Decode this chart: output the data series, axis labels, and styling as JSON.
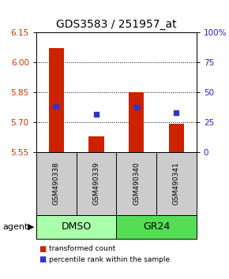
{
  "title": "GDS3583 / 251957_at",
  "samples": [
    "GSM490338",
    "GSM490339",
    "GSM490340",
    "GSM490341"
  ],
  "bar_tops": [
    6.07,
    5.63,
    5.85,
    5.69
  ],
  "bar_bottom": 5.55,
  "percentile_values": [
    5.78,
    5.74,
    5.775,
    5.745
  ],
  "ylim_left": [
    5.55,
    6.15
  ],
  "yticks_left": [
    5.55,
    5.7,
    5.85,
    6.0,
    6.15
  ],
  "ylim_right": [
    0,
    100
  ],
  "yticks_right": [
    0,
    25,
    50,
    75,
    100
  ],
  "ytick_labels_right": [
    "0",
    "25",
    "50",
    "75",
    "100%"
  ],
  "grid_lines": [
    5.7,
    5.85,
    6.0
  ],
  "bar_color": "#cc2200",
  "blue_color": "#3333cc",
  "groups": [
    {
      "label": "DMSO",
      "indices": [
        0,
        1
      ],
      "color": "#aaffaa"
    },
    {
      "label": "GR24",
      "indices": [
        2,
        3
      ],
      "color": "#55dd55"
    }
  ],
  "agent_label": "agent",
  "legend_items": [
    {
      "label": "transformed count",
      "color": "#cc2200"
    },
    {
      "label": "percentile rank within the sample",
      "color": "#3333cc"
    }
  ],
  "background_color": "#ffffff",
  "sample_box_color": "#cccccc",
  "title_fontsize": 10,
  "tick_fontsize": 7.5,
  "sample_fontsize": 6.5,
  "group_fontsize": 9,
  "legend_fontsize": 6.5,
  "agent_fontsize": 8
}
